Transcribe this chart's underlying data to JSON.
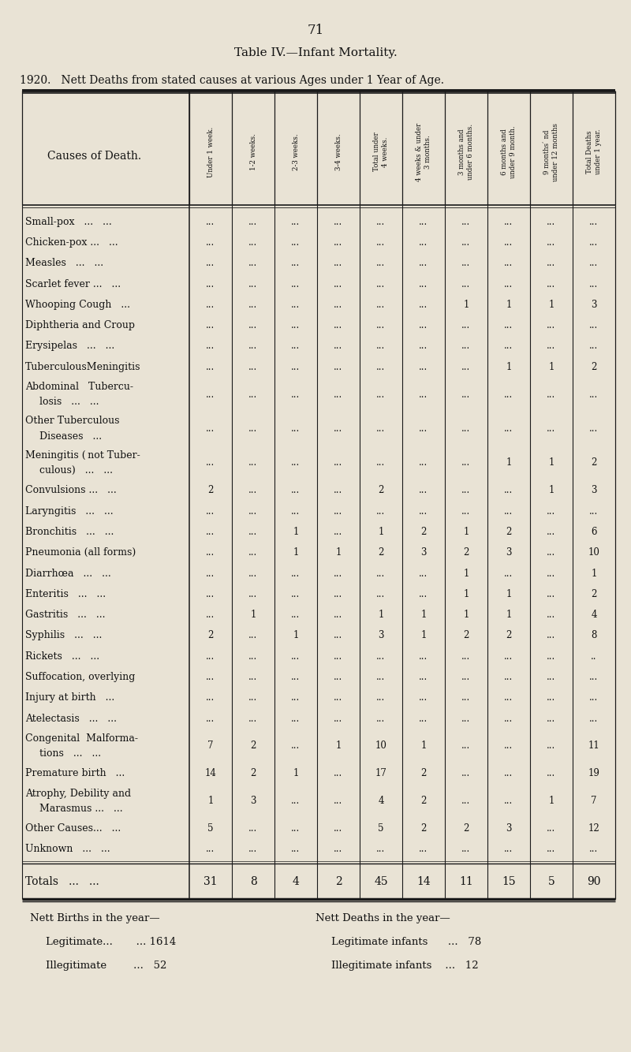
{
  "page_number": "71",
  "title": "Table IV.—Infant Mortality.",
  "subtitle": "1920.   Nett Deaths from stated causes at various Ages under 1 Year of Age.",
  "bg_color": "#e9e3d5",
  "col_headers": [
    "Under 1 week.",
    "1-2 weeks.",
    "2-3 weeks.",
    "3-4 weeks.",
    "Total under\n4 weeks.",
    "4 weeks & under\n3 months.",
    "3 months and\nunder 6 months.",
    "6 months and\nunder 9 month.",
    "9 months and\nunder 12 months",
    "Total Deaths\nunder 1 year."
  ],
  "rows": [
    {
      "cause": "Small-pox   ...   ...",
      "vals": [
        "...",
        "...",
        "...",
        "...",
        "...",
        "...",
        "...",
        "...",
        "...",
        "..."
      ],
      "multi": false
    },
    {
      "cause": "Chicken-pox ...   ...",
      "vals": [
        "...",
        "...",
        "...",
        "...",
        "...",
        "...",
        "...",
        "...",
        "...",
        "..."
      ],
      "multi": false
    },
    {
      "cause": "Measles   ...   ...",
      "vals": [
        "...",
        "...",
        "...",
        "...",
        "...",
        "...",
        "...",
        "...",
        "...",
        "..."
      ],
      "multi": false
    },
    {
      "cause": "Scarlet fever ...   ...",
      "vals": [
        "...",
        "...",
        "...",
        "...",
        "...",
        "...",
        "...",
        "...",
        "...",
        "..."
      ],
      "multi": false
    },
    {
      "cause": "Whooping Cough   ...",
      "vals": [
        "...",
        "...",
        "...",
        "...",
        "...",
        "...",
        "1",
        "1",
        "1",
        "3"
      ],
      "multi": false
    },
    {
      "cause": "Diphtheria and Croup",
      "vals": [
        "...",
        "...",
        "...",
        "...",
        "...",
        "...",
        "...",
        "...",
        "...",
        "..."
      ],
      "multi": false
    },
    {
      "cause": "Erysipelas   ...   ...",
      "vals": [
        "...",
        "...",
        "...",
        "...",
        "...",
        "...",
        "...",
        "...",
        "...",
        "..."
      ],
      "multi": false
    },
    {
      "cause": "TuberculousMeningitis",
      "vals": [
        "...",
        "...",
        "...",
        "...",
        "...",
        "...",
        "...",
        "1",
        "1",
        "2"
      ],
      "multi": false
    },
    {
      "cause": "Abdominal   Tubercu-",
      "vals": [
        "...",
        "...",
        "...",
        "...",
        "...",
        "...",
        "...",
        "...",
        "...",
        "..."
      ],
      "multi": true,
      "cause2": "  losis   ...   ..."
    },
    {
      "cause": "Other Tuberculous",
      "vals": [
        "...",
        "...",
        "...",
        "...",
        "...",
        "...",
        "...",
        "...",
        "...",
        "..."
      ],
      "multi": true,
      "cause2": "  Diseases   ..."
    },
    {
      "cause": "Meningitis ( not Tuber-",
      "vals": [
        "...",
        "...",
        "...",
        "...",
        "...",
        "...",
        "...",
        "1",
        "1",
        "2"
      ],
      "multi": true,
      "cause2": "  culous)   ...   ..."
    },
    {
      "cause": "Convulsions ...   ...",
      "vals": [
        "2",
        "...",
        "...",
        "...",
        "2",
        "...",
        "...",
        "...",
        "1",
        "3"
      ],
      "multi": false
    },
    {
      "cause": "Laryngitis   ...   ...",
      "vals": [
        "...",
        "...",
        "...",
        "...",
        "...",
        "...",
        "...",
        "...",
        "...",
        "..."
      ],
      "multi": false
    },
    {
      "cause": "Bronchitis   ...   ...",
      "vals": [
        "...",
        "...",
        "1",
        "...",
        "1",
        "2",
        "1",
        "2",
        "...",
        "6"
      ],
      "multi": false
    },
    {
      "cause": "Pneumonia (all forms)",
      "vals": [
        "...",
        "...",
        "1",
        "1",
        "2",
        "3",
        "2",
        "3",
        "...",
        "10"
      ],
      "multi": false
    },
    {
      "cause": "Diarrhœa   ...   ...",
      "vals": [
        "...",
        "...",
        "...",
        "...",
        "...",
        "...",
        "1",
        "...",
        "...",
        "1"
      ],
      "multi": false
    },
    {
      "cause": "Enteritis   ...   ...",
      "vals": [
        "...",
        "...",
        "...",
        "...",
        "...",
        "...",
        "1",
        "1",
        "...",
        "2"
      ],
      "multi": false
    },
    {
      "cause": "Gastritis   ...   ...",
      "vals": [
        "...",
        "1",
        "...",
        "...",
        "1",
        "1",
        "1",
        "1",
        "...",
        "4"
      ],
      "multi": false
    },
    {
      "cause": "Syphilis   ...   ...",
      "vals": [
        "2",
        "...",
        "1",
        "...",
        "3",
        "1",
        "2",
        "2",
        "...",
        "8"
      ],
      "multi": false
    },
    {
      "cause": "Rickets   ...   ...",
      "vals": [
        "...",
        "...",
        "...",
        "...",
        "...",
        "...",
        "...",
        "...",
        "...",
        ".."
      ],
      "multi": false
    },
    {
      "cause": "Suffocation, overlying",
      "vals": [
        "...",
        "...",
        "...",
        "...",
        "...",
        "...",
        "...",
        "...",
        "...",
        "..."
      ],
      "multi": false
    },
    {
      "cause": "Injury at birth   ...",
      "vals": [
        "...",
        "...",
        "...",
        "...",
        "...",
        "...",
        "...",
        "...",
        "...",
        "..."
      ],
      "multi": false
    },
    {
      "cause": "Atelectasis   ...   ...",
      "vals": [
        "...",
        "...",
        "...",
        "...",
        "...",
        "...",
        "...",
        "...",
        "...",
        "..."
      ],
      "multi": false
    },
    {
      "cause": "Congenital  Malforma-",
      "vals": [
        "7",
        "2",
        "...",
        "1",
        "10",
        "1",
        "...",
        "...",
        "...",
        "11"
      ],
      "multi": true,
      "cause2": "  tions   ...   ..."
    },
    {
      "cause": "Premature birth   ...",
      "vals": [
        "14",
        "2",
        "1",
        "...",
        "17",
        "2",
        "...",
        "...",
        "...",
        "19"
      ],
      "multi": false
    },
    {
      "cause": "Atrophy, Debility and",
      "vals": [
        "1",
        "3",
        "...",
        "...",
        "4",
        "2",
        "...",
        "...",
        "1",
        "7"
      ],
      "multi": true,
      "cause2": "  Marasmus ...   ..."
    },
    {
      "cause": "Other Causes...   ...",
      "vals": [
        "5",
        "...",
        "...",
        "...",
        "5",
        "2",
        "2",
        "3",
        "...",
        "12"
      ],
      "multi": false
    },
    {
      "cause": "Unknown   ...   ...",
      "vals": [
        "...",
        "...",
        "...",
        "...",
        "...",
        "...",
        "...",
        "...",
        "...",
        "..."
      ],
      "multi": false
    }
  ],
  "totals_label": "Totals   ...   ...",
  "totals": [
    "31",
    "8",
    "4",
    "2",
    "45",
    "14",
    "11",
    "15",
    "5",
    "90"
  ],
  "footer_left_line1": "Nett Births in the year—",
  "footer_left_line2": "Legitimate...       ... 1614",
  "footer_left_line3": "Illegitimate        ...   52",
  "footer_right_line1": "Nett Deaths in the year—",
  "footer_right_line2": "Legitimate infants      ...   78",
  "footer_right_line3": "Illegitimate infants    ...   12"
}
